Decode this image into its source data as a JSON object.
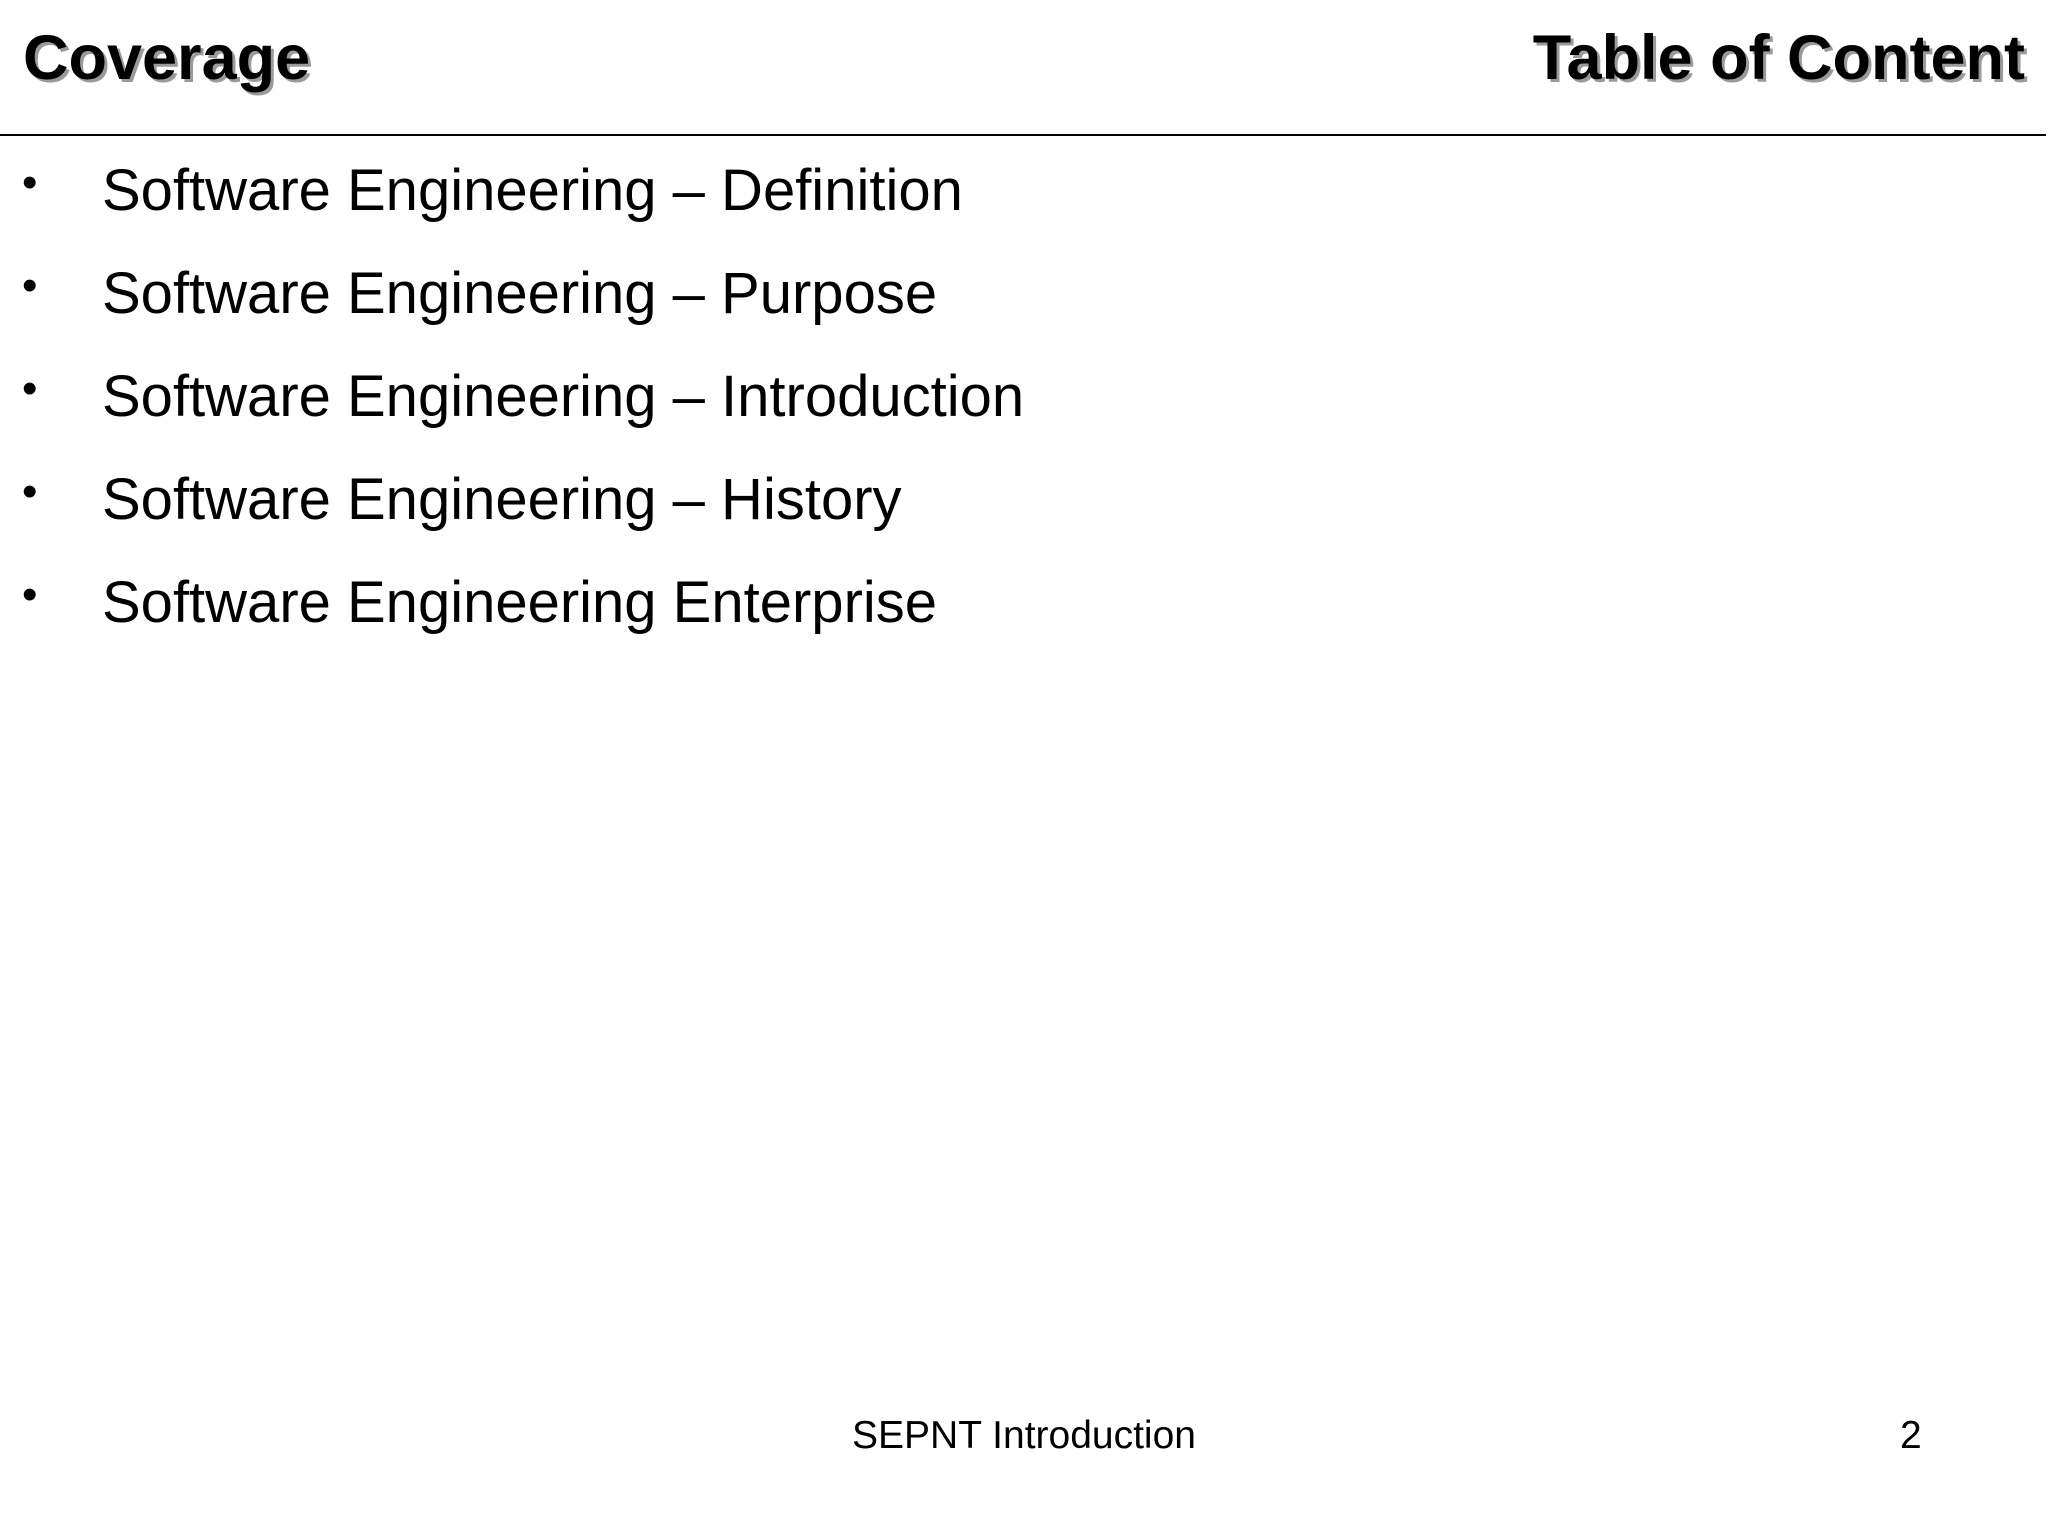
{
  "header": {
    "section": "Coverage",
    "title": "Table of Content"
  },
  "bullets": [
    "Software Engineering – Definition",
    "Software Engineering – Purpose",
    "Software Engineering – Introduction",
    "Software Engineering – History",
    "Software Engineering Enterprise"
  ],
  "footer": {
    "text": "SEPNT Introduction",
    "page": "2"
  }
}
